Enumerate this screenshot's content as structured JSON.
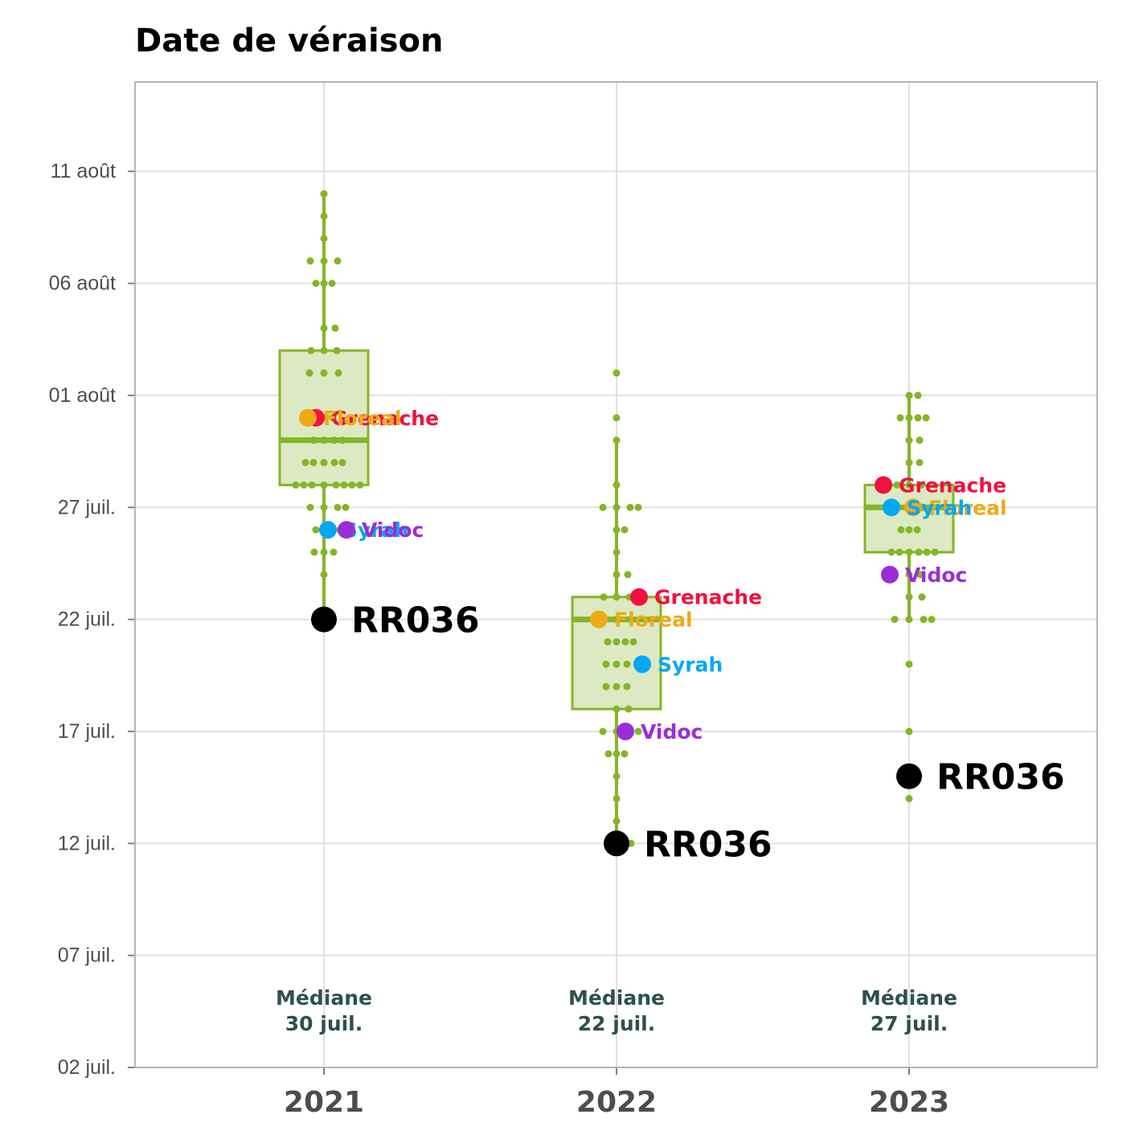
{
  "chart_data": {
    "type": "boxplot",
    "title": "Date de véraison",
    "xlabel": "",
    "ylabel": "",
    "categories": [
      "2021",
      "2022",
      "2023"
    ],
    "y_unit": "date",
    "ylim": [
      "2023-07-02",
      "2023-08-15"
    ],
    "y_ticks": [
      {
        "value": "2023-07-02",
        "label": "02 juil."
      },
      {
        "value": "2023-07-07",
        "label": "07 juil."
      },
      {
        "value": "2023-07-12",
        "label": "12 juil."
      },
      {
        "value": "2023-07-17",
        "label": "17 juil."
      },
      {
        "value": "2023-07-22",
        "label": "22 juil."
      },
      {
        "value": "2023-07-27",
        "label": "27 juil."
      },
      {
        "value": "2023-08-01",
        "label": "01 août"
      },
      {
        "value": "2023-08-06",
        "label": "06 août"
      },
      {
        "value": "2023-08-11",
        "label": "11 août"
      }
    ],
    "grid": true,
    "colors": {
      "box_stroke": "#84b527",
      "box_fill": "#dce9c2",
      "points": "#84b527",
      "Grenache": "#f0113f",
      "Floreal": "#eeaa13",
      "Syrah": "#03a8f4",
      "Vidoc": "#9a2ed6",
      "RR036": "#000000"
    },
    "boxes": [
      {
        "category": "2021",
        "whisker_low": "2023-07-22",
        "q1": "2023-07-28",
        "median": "2023-07-30",
        "q3": "2023-08-03",
        "whisker_high": "2023-08-10"
      },
      {
        "category": "2022",
        "whisker_low": "2023-07-12",
        "q1": "2023-07-18",
        "median": "2023-07-22",
        "q3": "2023-07-23",
        "whisker_high": "2023-07-30"
      },
      {
        "category": "2023",
        "whisker_low": "2023-07-22",
        "q1": "2023-07-25",
        "median": "2023-07-27",
        "q3": "2023-07-28",
        "whisker_high": "2023-08-01"
      }
    ],
    "points": [
      {
        "category": "2021",
        "values": [
          "2023-08-10",
          "2023-08-09",
          "2023-08-08",
          "2023-08-07",
          "2023-08-07",
          "2023-08-07",
          "2023-08-06",
          "2023-08-06",
          "2023-08-06",
          "2023-08-04",
          "2023-08-04",
          "2023-08-03",
          "2023-08-03",
          "2023-08-03",
          "2023-08-02",
          "2023-08-02",
          "2023-08-02",
          "2023-07-31",
          "2023-07-31",
          "2023-07-30",
          "2023-07-30",
          "2023-07-30",
          "2023-07-30",
          "2023-07-29",
          "2023-07-29",
          "2023-07-29",
          "2023-07-29",
          "2023-07-29",
          "2023-07-28",
          "2023-07-28",
          "2023-07-28",
          "2023-07-28",
          "2023-07-28",
          "2023-07-28",
          "2023-07-28",
          "2023-07-28",
          "2023-07-27",
          "2023-07-27",
          "2023-07-27",
          "2023-07-27",
          "2023-07-26",
          "2023-07-26",
          "2023-07-26",
          "2023-07-26",
          "2023-07-25",
          "2023-07-25",
          "2023-07-25",
          "2023-07-24",
          "2023-07-22"
        ]
      },
      {
        "category": "2022",
        "values": [
          "2023-08-02",
          "2023-07-31",
          "2023-07-30",
          "2023-07-28",
          "2023-07-27",
          "2023-07-27",
          "2023-07-27",
          "2023-07-27",
          "2023-07-26",
          "2023-07-26",
          "2023-07-25",
          "2023-07-24",
          "2023-07-24",
          "2023-07-23",
          "2023-07-23",
          "2023-07-23",
          "2023-07-23",
          "2023-07-22",
          "2023-07-22",
          "2023-07-22",
          "2023-07-21",
          "2023-07-21",
          "2023-07-21",
          "2023-07-21",
          "2023-07-20",
          "2023-07-20",
          "2023-07-20",
          "2023-07-19",
          "2023-07-19",
          "2023-07-19",
          "2023-07-18",
          "2023-07-18",
          "2023-07-17",
          "2023-07-17",
          "2023-07-17",
          "2023-07-17",
          "2023-07-16",
          "2023-07-16",
          "2023-07-16",
          "2023-07-15",
          "2023-07-14",
          "2023-07-13",
          "2023-07-12",
          "2023-07-12"
        ]
      },
      {
        "category": "2023",
        "values": [
          "2023-08-01",
          "2023-08-01",
          "2023-07-31",
          "2023-07-31",
          "2023-07-31",
          "2023-07-31",
          "2023-07-30",
          "2023-07-30",
          "2023-07-29",
          "2023-07-29",
          "2023-07-28",
          "2023-07-28",
          "2023-07-28",
          "2023-07-27",
          "2023-07-27",
          "2023-07-27",
          "2023-07-27",
          "2023-07-26",
          "2023-07-26",
          "2023-07-26",
          "2023-07-25",
          "2023-07-25",
          "2023-07-25",
          "2023-07-25",
          "2023-07-25",
          "2023-07-25",
          "2023-07-24",
          "2023-07-24",
          "2023-07-23",
          "2023-07-23",
          "2023-07-22",
          "2023-07-22",
          "2023-07-22",
          "2023-07-22",
          "2023-07-20",
          "2023-07-17",
          "2023-07-15",
          "2023-07-14"
        ]
      }
    ],
    "series": [
      {
        "name": "Grenache",
        "values": [
          "2023-07-31",
          "2023-07-23",
          "2023-07-28"
        ]
      },
      {
        "name": "Floreal",
        "values": [
          "2023-07-31",
          "2023-07-22",
          "2023-07-27"
        ]
      },
      {
        "name": "Syrah",
        "values": [
          "2023-07-26",
          "2023-07-20",
          "2023-07-27"
        ]
      },
      {
        "name": "Vidoc",
        "values": [
          "2023-07-26",
          "2023-07-17",
          "2023-07-24"
        ]
      },
      {
        "name": "RR036",
        "values": [
          "2023-07-22",
          "2023-07-12",
          "2023-07-15"
        ]
      }
    ],
    "annotations": [
      {
        "category": "2021",
        "lines": [
          "Médiane",
          "30 juil."
        ]
      },
      {
        "category": "2022",
        "lines": [
          "Médiane",
          "22 juil."
        ]
      },
      {
        "category": "2023",
        "lines": [
          "Médiane",
          "27 juil."
        ]
      }
    ]
  }
}
